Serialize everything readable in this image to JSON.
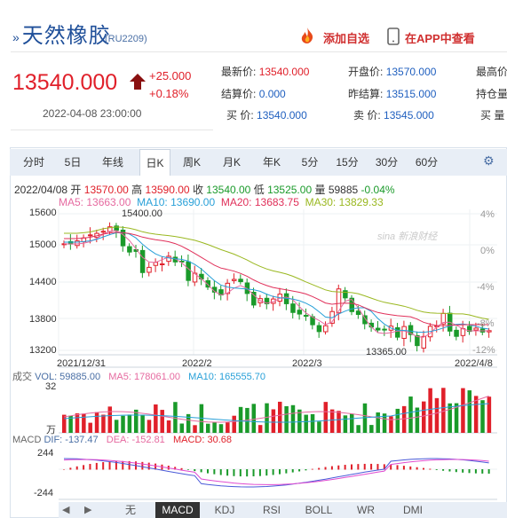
{
  "header": {
    "name": "天然橡胶",
    "code": "(RU2209)",
    "add_favorite": "添加自选",
    "open_app": "在APP中查看"
  },
  "quote": {
    "price": "13540.000",
    "change": "+25.000",
    "change_pct": "+0.18%",
    "time": "2022-04-08 23:00:00",
    "fields": [
      {
        "label": "最新价:",
        "value": "13540.000"
      },
      {
        "label": "开盘价:",
        "value": "13570.000"
      },
      {
        "label": "最高价",
        "value": ""
      },
      {
        "label": "结算价:",
        "value": "0.000"
      },
      {
        "label": "昨结算:",
        "value": "13515.000"
      },
      {
        "label": "持仓量",
        "value": ""
      },
      {
        "label": "买  价:",
        "value": "13540.000"
      },
      {
        "label": "卖  价:",
        "value": "13545.000"
      },
      {
        "label": "买  量",
        "value": ""
      }
    ]
  },
  "tabs": [
    "分时",
    "5日",
    "年线",
    "日K",
    "周K",
    "月K",
    "年K",
    "5分",
    "15分",
    "30分",
    "60分"
  ],
  "active_tab": "日K",
  "kinfo": {
    "line1": "2022/04/08 开 13570.00 高 13590.00 收 13540.00 低 13525.00 量 59885 -0.04%",
    "date": "2022/04/08",
    "open_l": "开",
    "open": "13570.00",
    "high_l": "高",
    "high": "13590.00",
    "close_l": "收",
    "close": "13540.00",
    "low_l": "低",
    "low": "13525.00",
    "vol_l": "量",
    "vol": "59885",
    "pct": "-0.04%",
    "ma5": "MA5: 13663.00",
    "ma10": "MA10: 13690.00",
    "ma20": "MA20: 13683.75",
    "ma30": "MA30: 13829.33"
  },
  "price_axis": [
    "15600",
    "15000",
    "14400",
    "13800",
    "13200"
  ],
  "pct_axis": [
    "4%",
    "0%",
    "-4%",
    "-8%",
    "-12%"
  ],
  "max_label": "15400.00",
  "min_label": "13365.00",
  "dates": [
    "2021/12/31",
    "2022/2",
    "2022/3",
    "2022/4/8"
  ],
  "watermark": "sina 新浪财经",
  "volume": {
    "title": "成交",
    "vol": "VOL: 59885.00",
    "ma5": "MA5: 178061.00",
    "ma10": "MA10: 165555.70",
    "axis_top": "32",
    "axis_unit": "万"
  },
  "macd": {
    "title": "MACD",
    "dif": "DIF: -137.47",
    "dea": "DEA: -152.81",
    "macd": "MACD: 30.68",
    "axis_top": "244",
    "axis_bottom": "-244"
  },
  "bottom_tabs": [
    "无",
    "MACD",
    "KDJ",
    "RSI",
    "BOLL",
    "WR",
    "DMI"
  ],
  "active_bottom": "MACD",
  "colors": {
    "up": "#e0202a",
    "down": "#1a9a2a",
    "ma5": "#e66aa0",
    "ma10": "#28a0d8",
    "ma20": "#e0305a",
    "ma30": "#9ab820",
    "brand": "#1f4f99"
  },
  "chart_data": {
    "type": "candlestick",
    "x_range": [
      "2021/12/31",
      "2022/4/8"
    ],
    "ylim": [
      13200,
      15600
    ],
    "last": {
      "open": 13570,
      "high": 13590,
      "low": 13525,
      "close": 13540,
      "volume": 59885
    },
    "max": 15400,
    "min": 13365
  }
}
